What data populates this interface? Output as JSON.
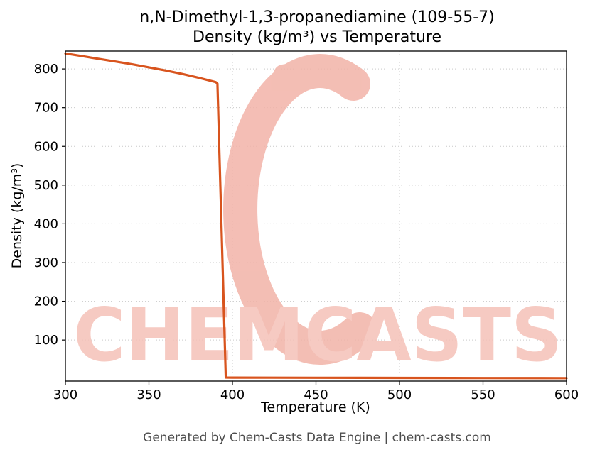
{
  "watermark": {
    "text": "CHEMCASTS",
    "color": "#f5c1b8",
    "swirl_color": "#f2b3a8"
  },
  "footer": {
    "text": "Generated by Chem-Casts Data Engine | chem-casts.com"
  },
  "chart_data": {
    "type": "line",
    "title_line1": "n,N-Dimethyl-1,3-propanediamine (109-55-7)",
    "title_line2": "Density (kg/m³) vs Temperature",
    "xlabel": "Temperature (K)",
    "ylabel": "Density (kg/m³)",
    "xlim": [
      300,
      600
    ],
    "ylim": [
      -6,
      846
    ],
    "xticks": [
      300,
      350,
      400,
      450,
      500,
      550,
      600
    ],
    "yticks": [
      100,
      200,
      300,
      400,
      500,
      600,
      700,
      800
    ],
    "grid": true,
    "legend": "none",
    "line_color": "#d8541e",
    "series": [
      {
        "name": "Density",
        "x": [
          300,
          310,
          320,
          330,
          340,
          350,
          360,
          370,
          380,
          390,
          391,
          396,
          400,
          450,
          500,
          550,
          600
        ],
        "y": [
          840,
          833,
          826,
          819,
          812,
          804,
          796,
          787,
          777,
          766,
          762,
          3.2,
          3.0,
          2.6,
          2.2,
          1.9,
          1.7
        ]
      }
    ]
  }
}
